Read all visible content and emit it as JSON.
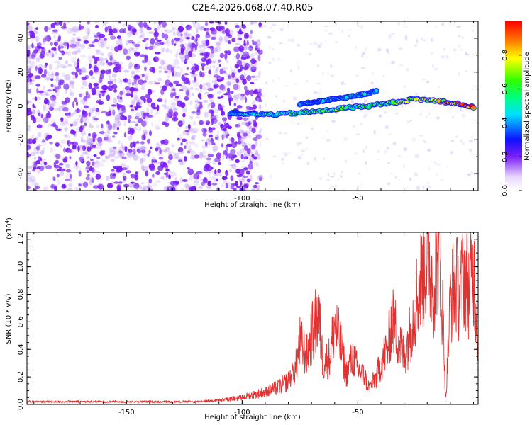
{
  "title": "C2E4.2026.068.07.40.R05",
  "colors": {
    "spectrogram_noise": "#7a1ff5",
    "snr_line": "#e53030",
    "axes": "#000000"
  },
  "chart_data": [
    {
      "type": "heatmap",
      "name": "spectrogram",
      "xlabel": "Height of straight line (km)",
      "ylabel": "Frequency (Hz)",
      "xlim": [
        -193,
        2
      ],
      "ylim": [
        -50,
        50
      ],
      "xticks": [
        -150,
        -100,
        -50
      ],
      "xtick_labels": [
        "-150",
        "-100",
        "-50"
      ],
      "yticks": [
        -40,
        -20,
        0,
        20,
        40
      ],
      "ytick_labels": [
        "-40",
        "-20",
        "0",
        "20",
        "40"
      ],
      "colorbar": {
        "label": "Normalized spectral amplitude",
        "ticks": [
          0.0,
          0.2,
          0.4,
          0.6,
          0.8
        ],
        "tick_labels": [
          "0.0",
          "0.2",
          "0.4",
          "0.6",
          "0.8"
        ],
        "range": [
          0,
          1
        ],
        "colormap": "rainbow (purple to red)"
      },
      "ridge_main": {
        "description": "main signal ridge frequency vs height",
        "x": [
          -105,
          -95,
          -85,
          -75,
          -65,
          -55,
          -45,
          -35,
          -25,
          -15,
          -5,
          0
        ],
        "y": [
          -4,
          -5,
          -5,
          -4,
          -3,
          -1,
          0,
          2,
          4,
          3,
          1,
          -1
        ],
        "amplitude": [
          0.35,
          0.45,
          0.5,
          0.55,
          0.65,
          0.6,
          0.55,
          0.6,
          0.75,
          0.85,
          0.95,
          0.9
        ]
      },
      "ridge_upper": {
        "description": "secondary branch",
        "x": [
          -75,
          -65,
          -55,
          -47,
          -42
        ],
        "y": [
          1,
          3,
          5,
          7,
          9
        ],
        "amplitude": [
          0.4,
          0.45,
          0.5,
          0.5,
          0.45
        ]
      },
      "noise_region": {
        "x": [
          -193,
          -100
        ],
        "amplitude_max": 0.2
      }
    },
    {
      "type": "line",
      "name": "snr",
      "xlabel": "Height of straight line (km)",
      "ylabel": "SNR (10 * v/v)",
      "yscale_label": "(x10",
      "yscale_exponent": "4",
      "yscale_suffix": ")",
      "xlim": [
        -193,
        2
      ],
      "ylim": [
        0,
        1.25
      ],
      "xticks": [
        -150,
        -100,
        -50
      ],
      "xtick_labels": [
        "-150",
        "-100",
        "-50"
      ],
      "yticks": [
        0.0,
        0.2,
        0.4,
        0.6,
        0.8,
        1.0,
        1.2
      ],
      "ytick_labels": [
        "0.0",
        "0.2",
        "0.4",
        "0.6",
        "0.8",
        "1.0",
        "1.2"
      ],
      "series": [
        {
          "name": "SNR",
          "x": [
            -193,
            -180,
            -160,
            -140,
            -120,
            -110,
            -100,
            -95,
            -90,
            -85,
            -80,
            -77,
            -75,
            -72,
            -70,
            -67,
            -65,
            -62,
            -60,
            -57,
            -55,
            -52,
            -50,
            -47,
            -45,
            -42,
            -40,
            -37,
            -35,
            -33,
            -30,
            -27,
            -25,
            -22,
            -20,
            -17,
            -15,
            -13,
            -12,
            -10,
            -8,
            -6,
            -4,
            -2,
            0,
            2
          ],
          "y": [
            0.02,
            0.02,
            0.02,
            0.02,
            0.02,
            0.03,
            0.05,
            0.07,
            0.09,
            0.12,
            0.17,
            0.25,
            0.45,
            0.35,
            0.5,
            0.65,
            0.3,
            0.35,
            0.6,
            0.4,
            0.22,
            0.35,
            0.25,
            0.2,
            0.12,
            0.2,
            0.3,
            0.42,
            0.65,
            0.5,
            0.35,
            0.55,
            0.75,
            0.95,
            1.1,
            0.85,
            1.25,
            0.55,
            0.02,
            0.75,
            0.9,
            0.8,
            0.95,
            0.85,
            1.0,
            0.45
          ]
        }
      ]
    }
  ]
}
